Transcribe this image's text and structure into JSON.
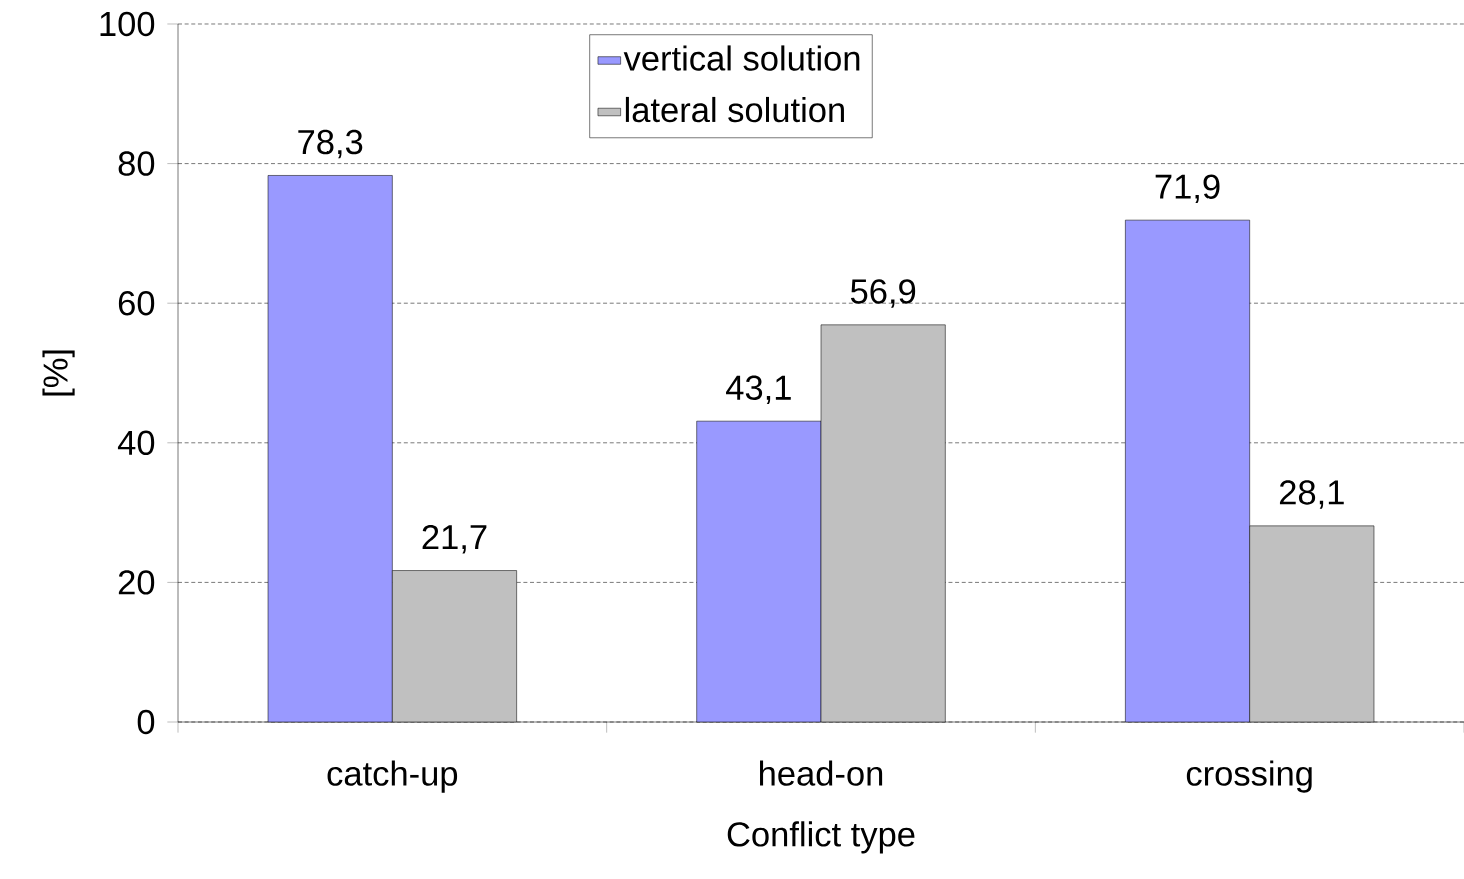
{
  "chart_data": {
    "type": "bar",
    "xlabel": "Conflict type",
    "ylabel": "[%]",
    "categories": [
      "catch-up",
      "head-on",
      "crossing"
    ],
    "series": [
      {
        "name": "vertical solution",
        "color": "#9999ff",
        "values": [
          78.3,
          43.1,
          71.9
        ],
        "value_labels": [
          "78,3",
          "43,1",
          "71,9"
        ]
      },
      {
        "name": "lateral solution",
        "color": "#c0c0c0",
        "values": [
          21.7,
          56.9,
          28.1
        ],
        "value_labels": [
          "21,7",
          "56,9",
          "28,1"
        ]
      }
    ],
    "ylim": [
      0,
      100
    ],
    "yticks": [
      0,
      20,
      40,
      60,
      80,
      100
    ],
    "grid": "y",
    "legend": "top"
  }
}
